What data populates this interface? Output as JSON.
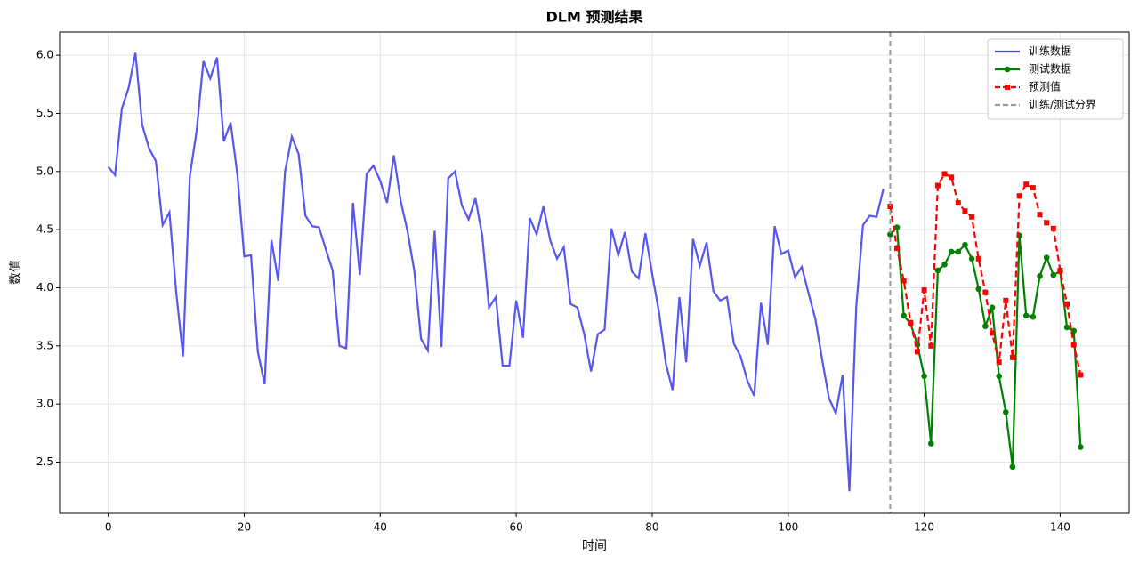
{
  "chart_data": {
    "type": "line",
    "title": "DLM 预测结果",
    "x_label": "时间",
    "y_label": "数值",
    "xlim": [
      -7.15,
      150.15
    ],
    "ylim": [
      2.06,
      6.2
    ],
    "xticks": [
      0,
      20,
      40,
      60,
      80,
      100,
      120,
      140
    ],
    "yticks": [
      2.5,
      {
        "value": 3,
        "label": "3.0"
      },
      3.5,
      {
        "value": 4,
        "label": "4.0"
      },
      4.5,
      {
        "value": 5,
        "label": "5.0"
      },
      5.5,
      {
        "value": 6,
        "label": "6.0"
      }
    ],
    "grid": true,
    "legend": "upper right",
    "series": [
      {
        "name": "训练数据",
        "color": "#4444ee",
        "style": "solid",
        "marker": "none",
        "x": [
          0,
          1,
          2,
          3,
          4,
          5,
          6,
          7,
          8,
          9,
          10,
          11,
          12,
          13,
          14,
          15,
          16,
          17,
          18,
          19,
          20,
          21,
          22,
          23,
          24,
          25,
          26,
          27,
          28,
          29,
          30,
          31,
          32,
          33,
          34,
          35,
          36,
          37,
          38,
          39,
          40,
          41,
          42,
          43,
          44,
          45,
          46,
          47,
          48,
          49,
          50,
          51,
          52,
          53,
          54,
          55,
          56,
          57,
          58,
          59,
          60,
          61,
          62,
          63,
          64,
          65,
          66,
          67,
          68,
          69,
          70,
          71,
          72,
          73,
          74,
          75,
          76,
          77,
          78,
          79,
          80,
          81,
          82,
          83,
          84,
          85,
          86,
          87,
          88,
          89,
          90,
          91,
          92,
          93,
          94,
          95,
          96,
          97,
          98,
          99,
          100,
          101,
          102,
          103,
          104,
          105,
          106,
          107,
          108,
          109,
          110,
          111,
          112,
          113,
          114
        ],
        "values": [
          5.04,
          4.97,
          5.54,
          5.72,
          6.02,
          5.4,
          5.2,
          5.09,
          4.54,
          4.65,
          3.96,
          3.41,
          4.96,
          5.35,
          5.95,
          5.8,
          5.98,
          5.26,
          5.42,
          4.97,
          4.27,
          4.28,
          3.45,
          3.17,
          4.41,
          4.06,
          5.0,
          5.3,
          5.15,
          4.62,
          4.53,
          4.52,
          4.33,
          4.15,
          3.5,
          3.48,
          4.73,
          4.11,
          4.98,
          5.05,
          4.92,
          4.73,
          5.14,
          4.75,
          4.49,
          4.15,
          3.56,
          3.46,
          4.49,
          3.49,
          4.94,
          5.0,
          4.71,
          4.59,
          4.77,
          4.45,
          3.83,
          3.92,
          3.33,
          3.33,
          3.89,
          3.57,
          4.6,
          4.46,
          4.7,
          4.41,
          4.25,
          4.35,
          3.86,
          3.83,
          3.6,
          3.28,
          3.6,
          3.64,
          4.51,
          4.28,
          4.48,
          4.14,
          4.08,
          4.47,
          4.12,
          3.79,
          3.35,
          3.12,
          3.92,
          3.36,
          4.42,
          4.19,
          4.39,
          3.97,
          3.89,
          3.92,
          3.52,
          3.41,
          3.2,
          3.07,
          3.87,
          3.51,
          4.53,
          4.29,
          4.32,
          4.09,
          4.18,
          3.95,
          3.73,
          3.38,
          3.05,
          2.92,
          3.25,
          2.25,
          3.83,
          4.54,
          4.62,
          4.61,
          4.85
        ]
      },
      {
        "name": "测试数据",
        "color": "#008000",
        "style": "solid",
        "marker": "circle",
        "x": [
          115,
          116,
          117,
          118,
          119,
          120,
          121,
          122,
          123,
          124,
          125,
          126,
          127,
          128,
          129,
          130,
          131,
          132,
          133,
          134,
          135,
          136,
          137,
          138,
          139,
          140,
          141,
          142,
          143
        ],
        "values": [
          4.46,
          4.52,
          3.76,
          3.69,
          3.51,
          3.24,
          2.66,
          4.15,
          4.2,
          4.31,
          4.31,
          4.37,
          4.25,
          3.99,
          3.67,
          3.83,
          3.24,
          2.93,
          2.46,
          4.45,
          3.76,
          3.75,
          4.1,
          4.26,
          4.11,
          4.14,
          3.66,
          3.63,
          2.63
        ]
      },
      {
        "name": "预测值",
        "color": "#ff0000",
        "style": "dashed",
        "marker": "square",
        "x": [
          115,
          116,
          117,
          118,
          119,
          120,
          121,
          122,
          123,
          124,
          125,
          126,
          127,
          128,
          129,
          130,
          131,
          132,
          133,
          134,
          135,
          136,
          137,
          138,
          139,
          140,
          141,
          142,
          143
        ],
        "values": [
          4.7,
          4.34,
          4.06,
          3.7,
          3.45,
          3.98,
          3.5,
          4.88,
          4.98,
          4.95,
          4.73,
          4.66,
          4.61,
          4.25,
          3.96,
          3.61,
          3.36,
          3.89,
          3.4,
          4.79,
          4.89,
          4.86,
          4.63,
          4.56,
          4.51,
          4.15,
          3.86,
          3.51,
          3.25
        ]
      }
    ],
    "split": {
      "name": "训练/测试分界",
      "x": 115,
      "color": "#999999"
    }
  }
}
